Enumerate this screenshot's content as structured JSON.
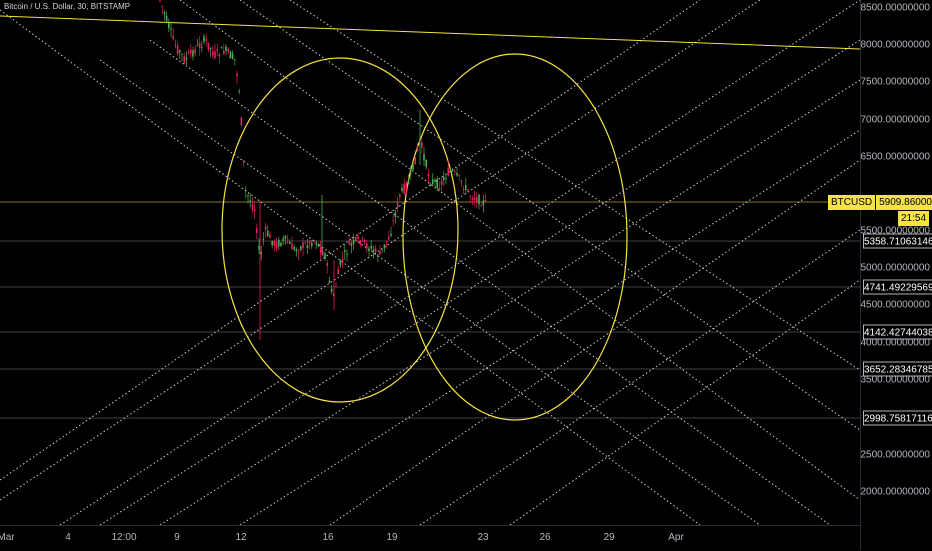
{
  "symbol": {
    "title": "Bitcoin / U.S. Dollar, 30, BITSTAMP"
  },
  "price_axis": {
    "ticks": [
      "8500.00000000",
      "8000.00000000",
      "7500.00000000",
      "7000.00000000",
      "6500.00000000",
      "5500.00000000",
      "5000.00000000",
      "4500.00000000",
      "4000.00000000",
      "3500.00000000",
      "2500.00000000",
      "2000.00000000"
    ],
    "levels": [
      "5358.71063146",
      "4741.49229569",
      "4142.42744038",
      "3652.28346785",
      "2998.75817116"
    ]
  },
  "current": {
    "symbol": "BTCUSD",
    "price": "5909.86000000",
    "countdown": "21:54"
  },
  "time_axis": {
    "ticks": [
      "Mar",
      "4",
      "12:00",
      "9",
      "12",
      "16",
      "19",
      "23",
      "26",
      "29",
      "Apr"
    ]
  },
  "colors": {
    "background": "#000000",
    "accent": "#f5e342",
    "dotted_lines": "#ffffff",
    "candle_up": "#4caf50",
    "candle_down": "#e91e63"
  }
}
